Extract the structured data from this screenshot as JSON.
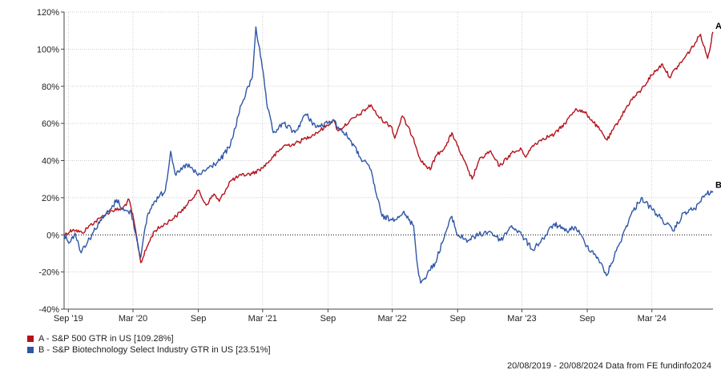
{
  "chart_data": {
    "type": "line",
    "ylim": [
      -40,
      120
    ],
    "y_ticks": [
      "120%",
      "100%",
      "80%",
      "60%",
      "40%",
      "20%",
      "0%",
      "-20%",
      "-40%"
    ],
    "x_ticks": [
      {
        "label": "Sep '19",
        "date": "2019-09-01"
      },
      {
        "label": "Mar '20",
        "date": "2020-03-01"
      },
      {
        "label": "Sep",
        "date": "2020-09-01"
      },
      {
        "label": "Mar '21",
        "date": "2021-03-01"
      },
      {
        "label": "Sep",
        "date": "2021-09-01"
      },
      {
        "label": "Mar '22",
        "date": "2022-03-01"
      },
      {
        "label": "Sep",
        "date": "2022-09-01"
      },
      {
        "label": "Mar '23",
        "date": "2023-03-01"
      },
      {
        "label": "Sep",
        "date": "2023-09-01"
      },
      {
        "label": "Mar '24",
        "date": "2024-03-01"
      }
    ],
    "x_range": [
      "2019-08-20",
      "2024-08-20"
    ],
    "grid": true,
    "zero_line": "dotted",
    "series": [
      {
        "name": "A - S&P 500 GTR in US [109.28%]",
        "end_label": "A",
        "color": "#b5121b",
        "points": [
          [
            "2019-08-20",
            0
          ],
          [
            "2019-09-15",
            3
          ],
          [
            "2019-10-10",
            1
          ],
          [
            "2019-10-31",
            5
          ],
          [
            "2019-11-30",
            9
          ],
          [
            "2019-12-31",
            13
          ],
          [
            "2020-01-31",
            14
          ],
          [
            "2020-02-19",
            19
          ],
          [
            "2020-03-05",
            6
          ],
          [
            "2020-03-23",
            -15
          ],
          [
            "2020-04-15",
            -4
          ],
          [
            "2020-04-30",
            2
          ],
          [
            "2020-05-31",
            6
          ],
          [
            "2020-06-30",
            10
          ],
          [
            "2020-07-31",
            16
          ],
          [
            "2020-08-31",
            24
          ],
          [
            "2020-09-23",
            16
          ],
          [
            "2020-10-15",
            22
          ],
          [
            "2020-10-30",
            18
          ],
          [
            "2020-11-30",
            29
          ],
          [
            "2020-12-31",
            32
          ],
          [
            "2021-01-31",
            33
          ],
          [
            "2021-02-28",
            36
          ],
          [
            "2021-03-31",
            42
          ],
          [
            "2021-04-30",
            48
          ],
          [
            "2021-05-31",
            49
          ],
          [
            "2021-06-30",
            52
          ],
          [
            "2021-07-31",
            55
          ],
          [
            "2021-08-31",
            59
          ],
          [
            "2021-09-15",
            62
          ],
          [
            "2021-09-30",
            56
          ],
          [
            "2021-10-31",
            61
          ],
          [
            "2021-11-30",
            65
          ],
          [
            "2021-12-31",
            70
          ],
          [
            "2022-01-15",
            65
          ],
          [
            "2022-01-31",
            62
          ],
          [
            "2022-02-28",
            58
          ],
          [
            "2022-03-08",
            52
          ],
          [
            "2022-03-29",
            64
          ],
          [
            "2022-04-30",
            52
          ],
          [
            "2022-05-20",
            40
          ],
          [
            "2022-06-16",
            35
          ],
          [
            "2022-06-30",
            42
          ],
          [
            "2022-07-31",
            48
          ],
          [
            "2022-08-16",
            55
          ],
          [
            "2022-08-31",
            48
          ],
          [
            "2022-09-30",
            35
          ],
          [
            "2022-10-12",
            30
          ],
          [
            "2022-10-31",
            40
          ],
          [
            "2022-11-30",
            45
          ],
          [
            "2022-12-28",
            37
          ],
          [
            "2023-01-31",
            44
          ],
          [
            "2023-02-28",
            46
          ],
          [
            "2023-03-13",
            42
          ],
          [
            "2023-03-31",
            48
          ],
          [
            "2023-04-30",
            52
          ],
          [
            "2023-05-31",
            54
          ],
          [
            "2023-06-30",
            60
          ],
          [
            "2023-07-31",
            68
          ],
          [
            "2023-08-31",
            65
          ],
          [
            "2023-09-30",
            58
          ],
          [
            "2023-10-27",
            51
          ],
          [
            "2023-11-30",
            62
          ],
          [
            "2023-12-31",
            72
          ],
          [
            "2024-01-31",
            78
          ],
          [
            "2024-02-29",
            86
          ],
          [
            "2024-03-31",
            92
          ],
          [
            "2024-04-19",
            85
          ],
          [
            "2024-05-31",
            95
          ],
          [
            "2024-06-30",
            103
          ],
          [
            "2024-07-16",
            108
          ],
          [
            "2024-08-05",
            95
          ],
          [
            "2024-08-20",
            109.28
          ]
        ]
      },
      {
        "name": "B - S&P Biotechnology Select Industry GTR in US [23.51%]",
        "end_label": "B",
        "color": "#2f56a6",
        "points": [
          [
            "2019-08-20",
            0
          ],
          [
            "2019-09-05",
            -4
          ],
          [
            "2019-09-20",
            1
          ],
          [
            "2019-10-05",
            -9
          ],
          [
            "2019-10-31",
            -2
          ],
          [
            "2019-11-30",
            8
          ],
          [
            "2019-12-31",
            14
          ],
          [
            "2020-01-15",
            19
          ],
          [
            "2020-02-05",
            13
          ],
          [
            "2020-02-25",
            12
          ],
          [
            "2020-03-23",
            -12
          ],
          [
            "2020-04-10",
            10
          ],
          [
            "2020-04-30",
            18
          ],
          [
            "2020-05-31",
            24
          ],
          [
            "2020-06-15",
            45
          ],
          [
            "2020-06-30",
            32
          ],
          [
            "2020-07-31",
            38
          ],
          [
            "2020-08-31",
            32
          ],
          [
            "2020-09-30",
            36
          ],
          [
            "2020-10-31",
            40
          ],
          [
            "2020-11-30",
            48
          ],
          [
            "2020-12-31",
            70
          ],
          [
            "2021-01-31",
            85
          ],
          [
            "2021-02-10",
            112
          ],
          [
            "2021-02-28",
            90
          ],
          [
            "2021-03-15",
            68
          ],
          [
            "2021-03-31",
            55
          ],
          [
            "2021-04-30",
            60
          ],
          [
            "2021-05-31",
            55
          ],
          [
            "2021-06-30",
            65
          ],
          [
            "2021-07-31",
            58
          ],
          [
            "2021-08-31",
            60
          ],
          [
            "2021-09-15",
            62
          ],
          [
            "2021-09-30",
            58
          ],
          [
            "2021-10-31",
            52
          ],
          [
            "2021-11-30",
            42
          ],
          [
            "2021-12-31",
            35
          ],
          [
            "2022-01-15",
            22
          ],
          [
            "2022-01-31",
            10
          ],
          [
            "2022-02-28",
            8
          ],
          [
            "2022-03-31",
            12
          ],
          [
            "2022-04-30",
            5
          ],
          [
            "2022-05-12",
            -18
          ],
          [
            "2022-05-20",
            -26
          ],
          [
            "2022-06-30",
            -15
          ],
          [
            "2022-07-31",
            2
          ],
          [
            "2022-08-16",
            10
          ],
          [
            "2022-08-31",
            0
          ],
          [
            "2022-09-30",
            -3
          ],
          [
            "2022-10-31",
            0
          ],
          [
            "2022-11-30",
            2
          ],
          [
            "2022-12-31",
            -3
          ],
          [
            "2023-01-31",
            5
          ],
          [
            "2023-02-28",
            0
          ],
          [
            "2023-03-31",
            -8
          ],
          [
            "2023-04-30",
            -2
          ],
          [
            "2023-05-31",
            6
          ],
          [
            "2023-06-30",
            2
          ],
          [
            "2023-07-31",
            4
          ],
          [
            "2023-08-31",
            -6
          ],
          [
            "2023-09-30",
            -12
          ],
          [
            "2023-10-25",
            -22
          ],
          [
            "2023-11-30",
            -5
          ],
          [
            "2023-12-31",
            10
          ],
          [
            "2024-01-31",
            20
          ],
          [
            "2024-02-29",
            14
          ],
          [
            "2024-03-31",
            8
          ],
          [
            "2024-04-30",
            2
          ],
          [
            "2024-05-31",
            12
          ],
          [
            "2024-06-30",
            14
          ],
          [
            "2024-07-31",
            22
          ],
          [
            "2024-08-20",
            23.51
          ]
        ]
      }
    ],
    "footer": "20/08/2019 - 20/08/2024 Data from FE fundinfo2024"
  }
}
